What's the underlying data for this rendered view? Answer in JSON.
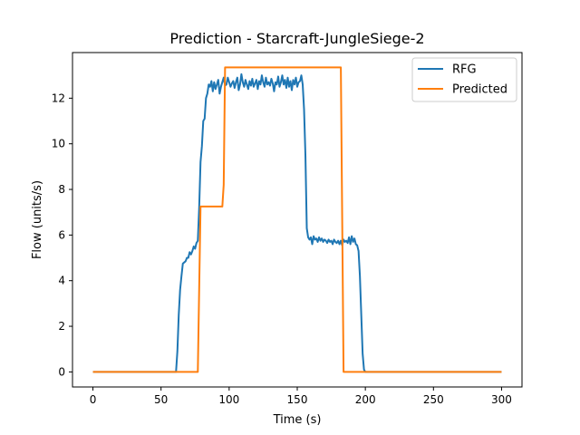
{
  "chart_data": {
    "type": "line",
    "title": "Prediction - Starcraft-JungleSiege-2",
    "xlabel": "Time (s)",
    "ylabel": "Flow (units/s)",
    "xlim": [
      -15,
      315
    ],
    "ylim": [
      -0.66,
      14.0
    ],
    "xticks": [
      0,
      50,
      100,
      150,
      200,
      250,
      300
    ],
    "yticks": [
      0,
      2,
      4,
      6,
      8,
      10,
      12
    ],
    "grid": false,
    "legend_position": "upper right",
    "series": [
      {
        "name": "RFG",
        "color": "#1f77b4",
        "points": [
          [
            0,
            0
          ],
          [
            61,
            0
          ],
          [
            62,
            0.9
          ],
          [
            63,
            2.5
          ],
          [
            64,
            3.6
          ],
          [
            65,
            4.2
          ],
          [
            66,
            4.75
          ],
          [
            67,
            4.8
          ],
          [
            68,
            4.85
          ],
          [
            69,
            5.0
          ],
          [
            70,
            5.0
          ],
          [
            71,
            5.25
          ],
          [
            72,
            5.15
          ],
          [
            73,
            5.3
          ],
          [
            74,
            5.5
          ],
          [
            75,
            5.4
          ],
          [
            76,
            5.65
          ],
          [
            77,
            5.75
          ],
          [
            78,
            7.2
          ],
          [
            79,
            9.2
          ],
          [
            80,
            9.9
          ],
          [
            81,
            11.0
          ],
          [
            82,
            11.1
          ],
          [
            83,
            12.0
          ],
          [
            84,
            12.2
          ],
          [
            85,
            12.6
          ],
          [
            86,
            12.5
          ],
          [
            87,
            12.75
          ],
          [
            88,
            12.3
          ],
          [
            89,
            12.7
          ],
          [
            90,
            12.4
          ],
          [
            91,
            12.6
          ],
          [
            92,
            12.8
          ],
          [
            93,
            12.2
          ],
          [
            94,
            12.5
          ],
          [
            95,
            12.7
          ],
          [
            96,
            12.9
          ],
          [
            97,
            12.55
          ],
          [
            98,
            12.6
          ],
          [
            99,
            12.9
          ],
          [
            100,
            12.7
          ],
          [
            101,
            12.5
          ],
          [
            102,
            12.65
          ],
          [
            103,
            12.75
          ],
          [
            104,
            12.45
          ],
          [
            105,
            12.7
          ],
          [
            106,
            12.9
          ],
          [
            107,
            12.35
          ],
          [
            108,
            12.6
          ],
          [
            109,
            13.05
          ],
          [
            110,
            12.7
          ],
          [
            111,
            12.5
          ],
          [
            112,
            12.8
          ],
          [
            113,
            12.6
          ],
          [
            114,
            12.4
          ],
          [
            115,
            12.75
          ],
          [
            116,
            12.55
          ],
          [
            117,
            12.85
          ],
          [
            118,
            12.5
          ],
          [
            119,
            12.65
          ],
          [
            120,
            12.8
          ],
          [
            121,
            12.4
          ],
          [
            122,
            12.75
          ],
          [
            123,
            12.6
          ],
          [
            124,
            13.0
          ],
          [
            125,
            12.7
          ],
          [
            126,
            12.5
          ],
          [
            127,
            12.9
          ],
          [
            128,
            12.6
          ],
          [
            129,
            12.7
          ],
          [
            130,
            12.55
          ],
          [
            131,
            12.85
          ],
          [
            132,
            12.65
          ],
          [
            133,
            12.3
          ],
          [
            134,
            12.7
          ],
          [
            135,
            12.6
          ],
          [
            136,
            12.95
          ],
          [
            137,
            12.5
          ],
          [
            138,
            12.7
          ],
          [
            139,
            13.0
          ],
          [
            140,
            12.6
          ],
          [
            141,
            12.8
          ],
          [
            142,
            12.45
          ],
          [
            143,
            12.9
          ],
          [
            144,
            12.5
          ],
          [
            145,
            12.75
          ],
          [
            146,
            12.35
          ],
          [
            147,
            12.8
          ],
          [
            148,
            12.6
          ],
          [
            149,
            12.9
          ],
          [
            150,
            12.5
          ],
          [
            151,
            12.7
          ],
          [
            152,
            12.75
          ],
          [
            153,
            13.0
          ],
          [
            154,
            12.6
          ],
          [
            155,
            11.5
          ],
          [
            156,
            9.5
          ],
          [
            157,
            6.3
          ],
          [
            158,
            5.9
          ],
          [
            159,
            5.8
          ],
          [
            160,
            5.9
          ],
          [
            161,
            5.6
          ],
          [
            162,
            5.95
          ],
          [
            163,
            5.8
          ],
          [
            164,
            5.85
          ],
          [
            165,
            5.7
          ],
          [
            166,
            5.9
          ],
          [
            167,
            5.75
          ],
          [
            168,
            5.85
          ],
          [
            169,
            5.7
          ],
          [
            170,
            5.8
          ],
          [
            171,
            5.75
          ],
          [
            172,
            5.65
          ],
          [
            173,
            5.8
          ],
          [
            174,
            5.7
          ],
          [
            175,
            5.75
          ],
          [
            176,
            5.6
          ],
          [
            177,
            5.8
          ],
          [
            178,
            5.7
          ],
          [
            179,
            5.65
          ],
          [
            180,
            5.75
          ],
          [
            181,
            5.6
          ],
          [
            182,
            5.75
          ],
          [
            183,
            5.55
          ],
          [
            184,
            5.8
          ],
          [
            185,
            5.7
          ],
          [
            186,
            5.75
          ],
          [
            187,
            5.65
          ],
          [
            188,
            5.9
          ],
          [
            189,
            5.6
          ],
          [
            190,
            5.95
          ],
          [
            191,
            5.7
          ],
          [
            192,
            5.85
          ],
          [
            193,
            5.6
          ],
          [
            194,
            5.55
          ],
          [
            195,
            5.3
          ],
          [
            196,
            4.2
          ],
          [
            197,
            2.5
          ],
          [
            198,
            0.8
          ],
          [
            199,
            0.1
          ],
          [
            200,
            0
          ],
          [
            300,
            0
          ]
        ]
      },
      {
        "name": "Predicted",
        "color": "#ff7f0e",
        "points": [
          [
            0,
            0
          ],
          [
            77,
            0
          ],
          [
            79,
            7.25
          ],
          [
            95,
            7.25
          ],
          [
            96,
            8.2
          ],
          [
            97,
            13.35
          ],
          [
            182,
            13.35
          ],
          [
            184,
            0
          ],
          [
            300,
            0
          ]
        ]
      }
    ]
  }
}
